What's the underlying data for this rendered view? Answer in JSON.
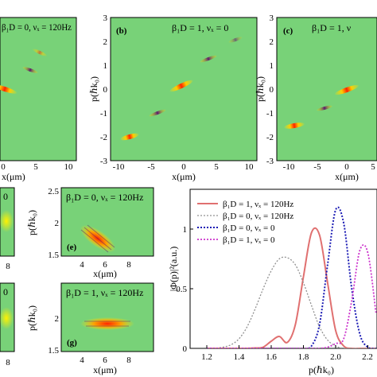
{
  "colors": {
    "field": "#78d278",
    "ridge_hot": "#ff2200",
    "ridge_mid": "#ffe600",
    "ridge_dark": "#5a1e6e",
    "s1": "#e07070",
    "s2": "#909090",
    "s3": "#1a1ab4",
    "s4": "#cc33cc"
  },
  "top": {
    "xlabel": "x(μm)",
    "ylabel": "p(ℏk₀)",
    "xticks_left": [
      "0",
      "5",
      "10"
    ],
    "xticks_mid": [
      "-10",
      "-5",
      "0",
      "5",
      "10"
    ],
    "xticks_right": [
      "-10",
      "-5",
      "0",
      "5"
    ],
    "yticks": [
      "3",
      "2",
      "1",
      "0",
      "-1",
      "-2",
      "-3"
    ],
    "panels": [
      {
        "tag": "",
        "title": "β₁D = 0, νₓ = 120Hz"
      },
      {
        "tag": "(b)",
        "title": "β₁D = 1, νₓ = 0"
      },
      {
        "tag": "(c)",
        "title": "β₁D = 1, ν"
      }
    ]
  },
  "bottom_small": {
    "xlabel": "x(μm)",
    "xticks": [
      "4",
      "6",
      "8"
    ],
    "ylabel": "p(ℏk₀)",
    "yticks": [
      "2.5",
      "2",
      "1.5"
    ],
    "left_xtick": "8",
    "left_title_fragment": "0",
    "panels": [
      {
        "tag": "(e)",
        "title": "β₁D = 0, νₓ = 120Hz"
      },
      {
        "tag": "(g)",
        "title": "β₁D = 1, νₓ = 120Hz"
      }
    ]
  },
  "chart_data": {
    "type": "line",
    "xlabel": "p(ℏk₀)",
    "ylabel": "|Φ(p)|²(a.u.)",
    "xlim": [
      1.2,
      2.2
    ],
    "ylim": [
      0,
      1.2
    ],
    "xticks": [
      "1.2",
      "1.4",
      "1.6",
      "1.8",
      "2.0",
      "2.2"
    ],
    "yticks": [
      "0",
      "0.5",
      "1"
    ],
    "x": [
      1.2,
      1.25,
      1.3,
      1.35,
      1.4,
      1.45,
      1.5,
      1.55,
      1.6,
      1.65,
      1.7,
      1.75,
      1.8,
      1.85,
      1.9,
      1.95,
      2.0,
      2.05,
      2.1,
      2.15,
      2.2,
      2.25
    ],
    "series": [
      {
        "name": "β₁D = 1, νₓ = 120Hz",
        "style": "solid",
        "values": [
          0,
          0,
          0,
          0,
          0,
          0,
          0.003,
          0.01,
          0.06,
          0.1,
          0.05,
          0.2,
          0.6,
          0.97,
          0.95,
          0.55,
          0.15,
          0.02,
          0,
          0,
          0,
          0
        ]
      },
      {
        "name": "β₁D = 0, νₓ = 120Hz",
        "style": "dotted",
        "values": [
          0,
          0,
          0.01,
          0.03,
          0.08,
          0.18,
          0.33,
          0.5,
          0.65,
          0.75,
          0.76,
          0.7,
          0.55,
          0.36,
          0.18,
          0.07,
          0.02,
          0,
          0,
          0,
          0,
          0
        ]
      },
      {
        "name": "β₁D = 0, νₓ = 0",
        "style": "dotted",
        "values": [
          0,
          0,
          0,
          0,
          0,
          0,
          0,
          0,
          0,
          0,
          0,
          0,
          0,
          0.02,
          0.2,
          0.7,
          1.16,
          1.05,
          0.5,
          0.12,
          0.01,
          0
        ]
      },
      {
        "name": "β₁D = 1, νₓ = 0",
        "style": "dotted",
        "values": [
          0,
          0,
          0,
          0,
          0,
          0,
          0,
          0,
          0,
          0,
          0,
          0,
          0,
          0,
          0,
          0.01,
          0.04,
          0.08,
          0.4,
          0.82,
          0.8,
          0.3
        ]
      }
    ],
    "legend_position": "top-left"
  }
}
